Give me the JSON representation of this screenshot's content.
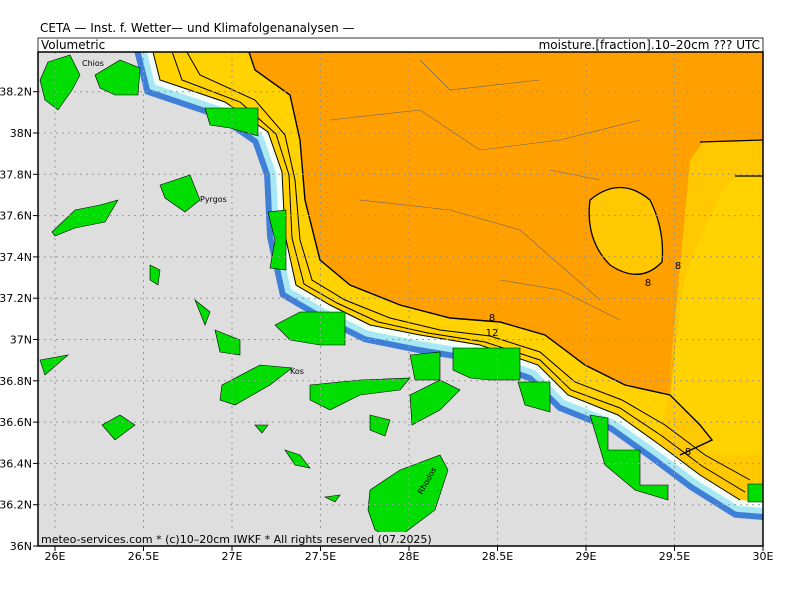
{
  "header": {
    "title": "CETA — Inst. f. Wetter— und Klimafolgenanalysen —",
    "left": "Volumetric",
    "right": "moisture.[fraction].10–20cm ??? UTC"
  },
  "map": {
    "lat_ticks": [
      {
        "value": 36,
        "label": "36N"
      },
      {
        "value": 36.2,
        "label": "36.2N"
      },
      {
        "value": 36.4,
        "label": "36.4N"
      },
      {
        "value": 36.6,
        "label": "36.6N"
      },
      {
        "value": 36.8,
        "label": "36.8N"
      },
      {
        "value": 37,
        "label": "37N"
      },
      {
        "value": 37.2,
        "label": "37.2N"
      },
      {
        "value": 37.4,
        "label": "37.4N"
      },
      {
        "value": 37.6,
        "label": "37.6N"
      },
      {
        "value": 37.8,
        "label": "37.8N"
      },
      {
        "value": 38,
        "label": "38N"
      },
      {
        "value": 38.2,
        "label": "38.2N"
      }
    ],
    "lon_ticks": [
      {
        "value": 26,
        "label": "26E"
      },
      {
        "value": 26.5,
        "label": "26.5E"
      },
      {
        "value": 27,
        "label": "27E"
      },
      {
        "value": 27.5,
        "label": "27.5E"
      },
      {
        "value": 28,
        "label": "28E"
      },
      {
        "value": 28.5,
        "label": "28.5E"
      },
      {
        "value": 29,
        "label": "29E"
      },
      {
        "value": 29.5,
        "label": "29.5E"
      },
      {
        "value": 30,
        "label": "30E"
      }
    ],
    "contour_labels": [
      "8",
      "12",
      "8",
      "8",
      "8"
    ],
    "places": [
      "Chios",
      "Pyrgos",
      "Kos",
      "Rhodos"
    ]
  },
  "footer": "meteo-services.com * (c)10–20cm IWKF * All rights reserved (07.2025)"
}
